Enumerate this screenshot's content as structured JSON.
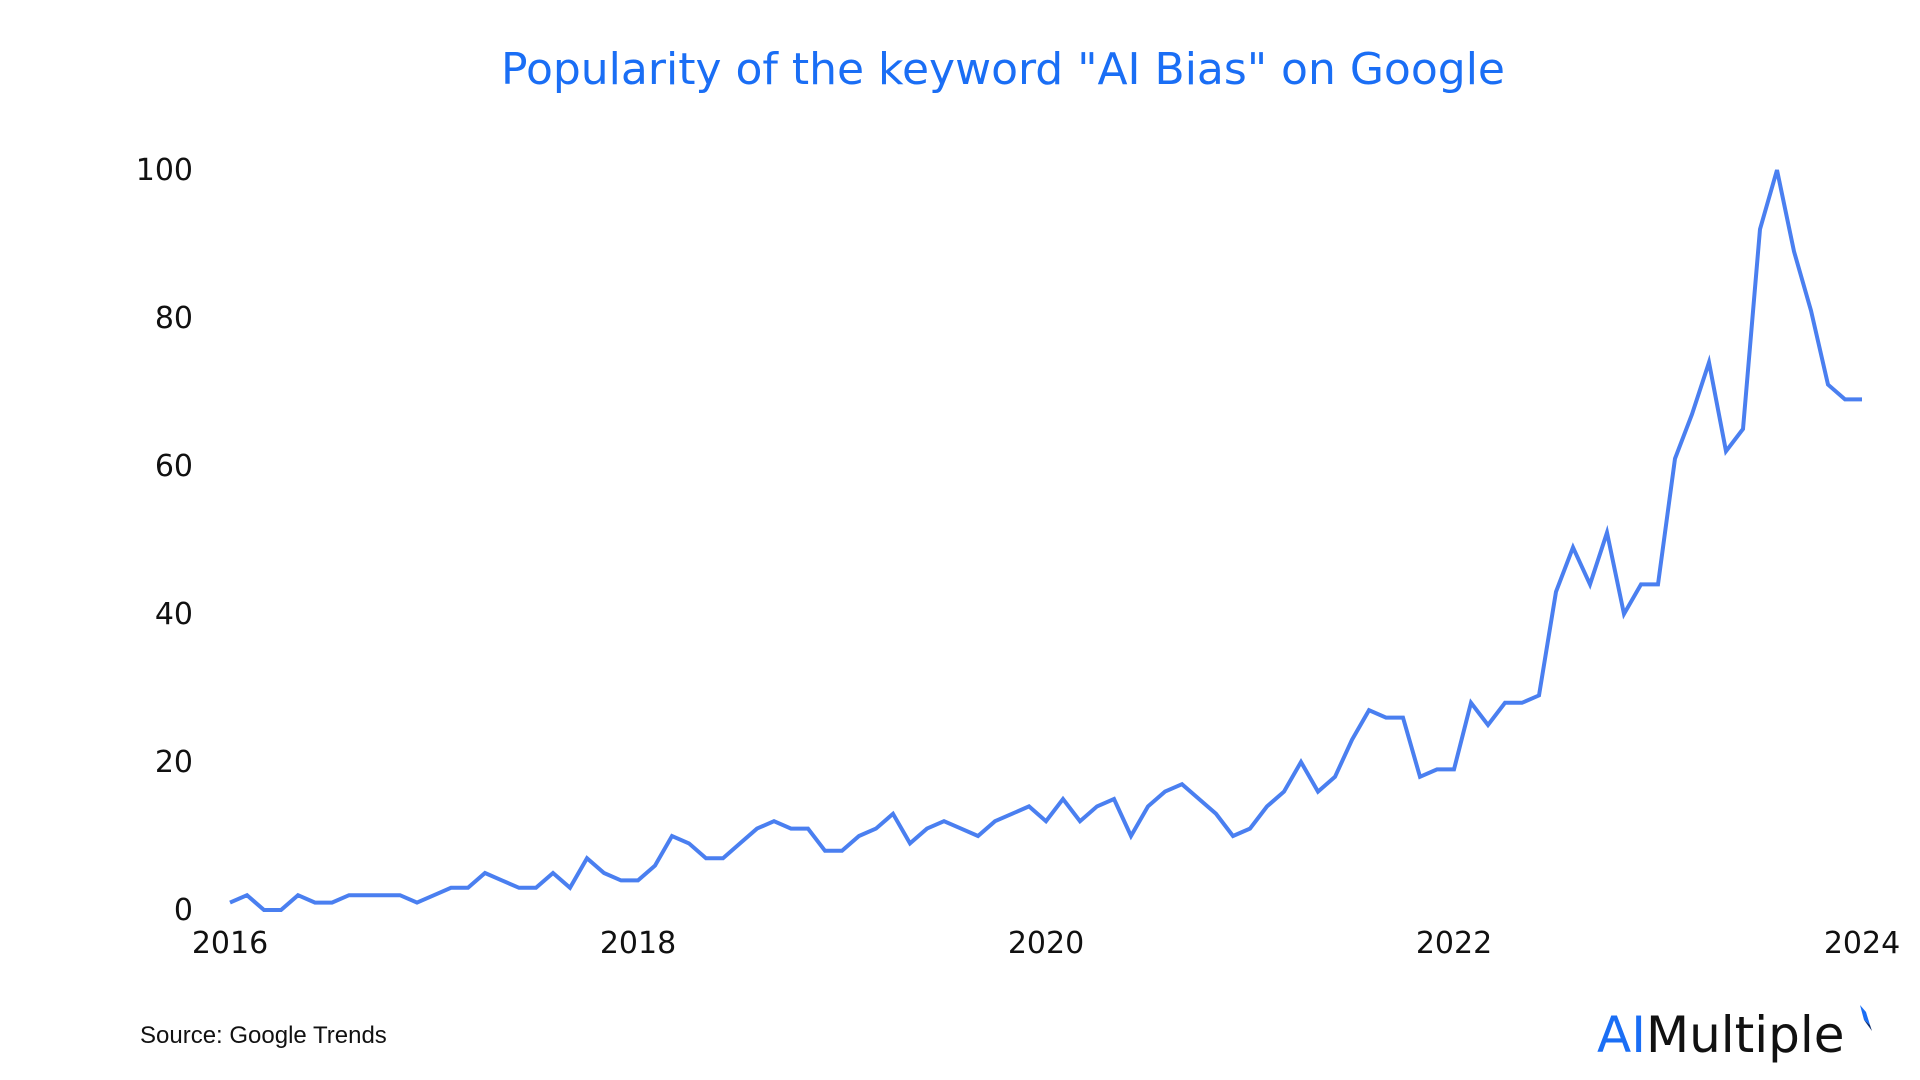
{
  "chart_data": {
    "type": "line",
    "title": "Popularity of the keyword \"AI Bias\" on Google",
    "xlabel": "",
    "ylabel": "",
    "x_start": "2016-01",
    "x_frequency": "monthly",
    "x_tick_labels": [
      "2016",
      "2018",
      "2020",
      "2022",
      "2024"
    ],
    "y_ticks": [
      0,
      20,
      40,
      60,
      80,
      100
    ],
    "ylim": [
      0,
      100
    ],
    "grid": false,
    "legend": "none",
    "series": [
      {
        "color": "#4a7ff0",
        "values": [
          1,
          2,
          0,
          0,
          2,
          1,
          1,
          2,
          2,
          2,
          2,
          1,
          2,
          3,
          3,
          5,
          4,
          3,
          3,
          5,
          3,
          7,
          5,
          4,
          4,
          6,
          10,
          9,
          7,
          7,
          9,
          11,
          12,
          11,
          11,
          8,
          8,
          10,
          11,
          13,
          9,
          11,
          12,
          11,
          10,
          12,
          13,
          14,
          12,
          15,
          12,
          14,
          15,
          10,
          14,
          16,
          17,
          15,
          13,
          10,
          11,
          14,
          16,
          20,
          16,
          18,
          23,
          27,
          26,
          26,
          18,
          19,
          19,
          28,
          25,
          28,
          28,
          29,
          43,
          49,
          44,
          51,
          40,
          44,
          44,
          61,
          67,
          74,
          62,
          65,
          92,
          100,
          89,
          81,
          71,
          69,
          69
        ]
      }
    ]
  },
  "footer": {
    "source": "Source: Google Trends"
  },
  "brand": {
    "ai": "AI",
    "rest": "Multiple",
    "accent_color": "#1a6ef5"
  }
}
